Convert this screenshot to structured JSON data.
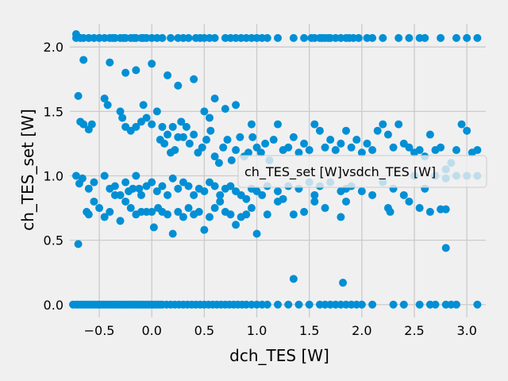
{
  "chart_data": {
    "type": "scatter",
    "title": "",
    "xlabel": "dch_TES [W]",
    "ylabel": "ch_TES_set [W]",
    "xlim": [
      -0.78,
      3.18
    ],
    "ylim": [
      -0.1,
      2.18
    ],
    "xticks": [
      -0.5,
      0.0,
      0.5,
      1.0,
      1.5,
      2.0,
      2.5,
      3.0
    ],
    "xtick_labels": [
      "−0.5",
      "0.0",
      "0.5",
      "1.0",
      "1.5",
      "2.0",
      "2.5",
      "3.0"
    ],
    "yticks": [
      0.0,
      0.5,
      1.0,
      1.5,
      2.0
    ],
    "ytick_labels": [
      "0.0",
      "0.5",
      "1.0",
      "1.5",
      "2.0"
    ],
    "grid": true,
    "style": "fivethirtyeight",
    "marker_color": "#008fd5",
    "background_color": "#f0f0f0",
    "grid_color": "#cbcbcb",
    "legend": {
      "placement": "right",
      "entries": [
        "ch_TES_set [W]vsdch_TES [W]"
      ]
    },
    "series": [
      {
        "name": "ch_TES_set [W]vsdch_TES [W]",
        "x": [
          -0.75,
          -0.72,
          -0.7,
          -0.68,
          -0.66,
          -0.64,
          -0.62,
          -0.6,
          -0.58,
          -0.56,
          -0.54,
          -0.52,
          -0.5,
          -0.48,
          -0.46,
          -0.44,
          -0.42,
          -0.4,
          -0.38,
          -0.36,
          -0.34,
          -0.32,
          -0.3,
          -0.28,
          -0.26,
          -0.24,
          -0.22,
          -0.2,
          -0.18,
          -0.16,
          -0.14,
          -0.12,
          -0.1,
          -0.08,
          -0.06,
          -0.04,
          -0.02,
          0.0,
          0.02,
          0.04,
          0.06,
          0.08,
          0.1,
          0.14,
          0.18,
          0.22,
          0.26,
          0.3,
          0.34,
          0.38,
          0.42,
          0.46,
          0.5,
          0.54,
          0.58,
          0.62,
          0.66,
          0.7,
          0.74,
          0.78,
          0.82,
          0.86,
          0.9,
          0.95,
          1.0,
          1.05,
          1.1,
          1.2,
          1.3,
          1.4,
          1.5,
          1.6,
          1.65,
          1.7,
          1.75,
          1.8,
          1.85,
          1.9,
          1.95,
          2.0,
          2.1,
          2.3,
          2.4,
          2.55,
          2.65,
          2.7,
          2.8,
          2.85,
          2.9,
          3.1,
          -0.72,
          -0.68,
          -0.65,
          -0.6,
          -0.55,
          -0.5,
          -0.45,
          -0.4,
          -0.37,
          -0.35,
          -0.3,
          -0.27,
          -0.25,
          -0.2,
          -0.17,
          -0.15,
          -0.1,
          -0.08,
          -0.05,
          0.0,
          0.05,
          0.1,
          0.18,
          0.25,
          0.3,
          0.35,
          0.42,
          0.46,
          0.5,
          0.55,
          0.6,
          0.7,
          0.75,
          0.8,
          0.85,
          0.9,
          0.95,
          1.0,
          1.05,
          1.1,
          1.2,
          1.35,
          1.45,
          1.52,
          1.55,
          1.6,
          1.62,
          1.65,
          1.68,
          1.7,
          1.75,
          1.8,
          1.85,
          1.88,
          1.92,
          1.97,
          2.05,
          2.1,
          2.2,
          2.35,
          2.45,
          2.55,
          2.6,
          2.75,
          2.9,
          3.0,
          3.1,
          -0.7,
          -0.68,
          -0.65,
          -0.6,
          -0.57,
          -0.45,
          -0.42,
          -0.3,
          -0.28,
          -0.25,
          -0.2,
          -0.15,
          -0.1,
          -0.08,
          -0.05,
          0.0,
          0.05,
          0.08,
          0.1,
          0.12,
          0.15,
          0.18,
          0.2,
          0.22,
          0.25,
          0.28,
          0.3,
          0.33,
          0.36,
          0.4,
          0.44,
          0.48,
          0.52,
          0.56,
          0.6,
          0.64,
          0.68,
          0.72,
          0.76,
          0.8,
          0.84,
          0.88,
          0.92,
          0.96,
          1.0,
          1.04,
          1.08,
          1.12,
          1.16,
          1.2,
          1.25,
          1.3,
          1.35,
          1.4,
          1.45,
          1.5,
          1.55,
          1.6,
          1.65,
          1.7,
          1.75,
          1.8,
          1.85,
          1.9,
          1.95,
          2.0,
          2.05,
          2.1,
          2.15,
          2.2,
          2.25,
          2.3,
          2.35,
          2.4,
          2.45,
          2.5,
          2.55,
          2.6,
          2.65,
          2.7,
          2.75,
          2.8,
          2.85,
          2.9,
          2.95,
          3.0,
          3.05,
          3.1,
          -0.72,
          -0.69,
          -0.66,
          -0.6,
          -0.55,
          -0.45,
          -0.4,
          -0.35,
          -0.3,
          -0.25,
          -0.22,
          -0.18,
          -0.15,
          -0.12,
          -0.1,
          -0.05,
          0.0,
          0.05,
          0.1,
          0.15,
          0.2,
          0.25,
          0.3,
          0.35,
          0.4,
          0.45,
          0.5,
          0.55,
          0.6,
          0.65,
          0.7,
          0.75,
          0.8,
          0.85,
          0.9,
          0.95,
          1.0,
          1.05,
          1.1,
          1.2,
          1.25,
          1.3,
          1.4,
          1.5,
          1.55,
          1.6,
          1.7,
          1.8,
          1.85,
          1.9,
          2.0,
          2.1,
          2.2,
          2.3,
          2.4,
          2.5,
          2.6,
          2.7,
          2.8,
          2.9,
          3.0,
          3.1,
          -0.7,
          -0.62,
          -0.6,
          -0.55,
          -0.5,
          -0.45,
          -0.4,
          -0.35,
          -0.3,
          -0.25,
          -0.2,
          -0.15,
          -0.1,
          -0.05,
          0.0,
          0.02,
          0.06,
          0.1,
          0.15,
          0.2,
          0.25,
          0.3,
          0.35,
          0.4,
          0.45,
          0.5,
          0.55,
          0.6,
          0.65,
          0.7,
          0.75,
          0.8,
          0.85,
          0.9,
          0.95,
          1.0,
          1.1,
          1.2,
          1.35,
          1.45,
          1.55,
          1.65,
          1.8,
          1.85,
          2.25,
          2.27,
          2.45,
          2.55,
          2.65,
          2.75,
          2.8,
          -0.72,
          -0.65,
          -0.4,
          -0.25,
          -0.15,
          0.0,
          0.15,
          0.25,
          0.4,
          0.5,
          0.55,
          0.6,
          0.7,
          0.8,
          0.95,
          1.35,
          1.82,
          2.8
        ],
        "y": [
          0.0,
          0.0,
          0.0,
          0.0,
          0.0,
          0.0,
          0.0,
          0.0,
          0.0,
          0.0,
          0.0,
          0.0,
          0.0,
          0.0,
          0.0,
          0.0,
          0.0,
          0.0,
          0.0,
          0.0,
          0.0,
          0.0,
          0.0,
          0.0,
          0.0,
          0.0,
          0.0,
          0.0,
          0.0,
          0.0,
          0.0,
          0.0,
          0.0,
          0.0,
          0.0,
          0.0,
          0.0,
          0.0,
          0.0,
          0.0,
          0.0,
          0.0,
          0.0,
          0.0,
          0.0,
          0.0,
          0.0,
          0.0,
          0.0,
          0.0,
          0.0,
          0.0,
          0.0,
          0.0,
          0.0,
          0.0,
          0.0,
          0.0,
          0.0,
          0.0,
          0.0,
          0.0,
          0.0,
          0.0,
          0.0,
          0.0,
          0.0,
          0.0,
          0.0,
          0.0,
          0.0,
          0.0,
          0.0,
          0.0,
          0.0,
          0.0,
          0.0,
          0.0,
          0.0,
          0.0,
          0.0,
          0.0,
          0.0,
          0.0,
          0.0,
          0.0,
          0.0,
          0.0,
          0.0,
          0.0,
          2.07,
          2.07,
          2.07,
          2.07,
          2.07,
          2.07,
          2.07,
          2.07,
          2.07,
          2.07,
          2.07,
          2.07,
          2.07,
          2.07,
          2.07,
          2.07,
          2.07,
          2.07,
          2.07,
          2.07,
          2.07,
          2.07,
          2.07,
          2.07,
          2.07,
          2.07,
          2.07,
          2.07,
          2.07,
          2.07,
          2.07,
          2.07,
          2.07,
          2.07,
          2.07,
          2.07,
          2.07,
          2.07,
          2.07,
          2.07,
          2.07,
          2.07,
          2.07,
          2.07,
          2.07,
          2.07,
          2.07,
          2.07,
          2.07,
          2.07,
          2.07,
          2.07,
          2.07,
          2.07,
          2.07,
          2.07,
          2.07,
          2.07,
          2.07,
          2.07,
          2.07,
          2.07,
          2.07,
          2.07,
          2.07,
          2.07,
          2.07,
          1.62,
          1.42,
          1.4,
          1.36,
          1.4,
          1.6,
          1.55,
          1.5,
          1.45,
          1.38,
          1.35,
          1.38,
          1.42,
          1.55,
          1.45,
          1.4,
          1.5,
          1.28,
          1.38,
          1.25,
          1.32,
          1.18,
          1.38,
          1.2,
          1.3,
          1.42,
          1.3,
          1.38,
          1.25,
          1.32,
          1.18,
          1.22,
          1.28,
          1.35,
          1.15,
          1.1,
          1.22,
          1.28,
          1.12,
          1.2,
          1.3,
          1.15,
          1.18,
          1.3,
          1.22,
          1.18,
          1.25,
          1.12,
          1.28,
          1.4,
          1.2,
          1.22,
          1.3,
          1.18,
          1.25,
          1.2,
          1.4,
          1.35,
          1.22,
          1.28,
          1.2,
          1.25,
          1.35,
          1.22,
          1.28,
          1.18,
          1.25,
          1.2,
          1.35,
          1.4,
          1.32,
          1.22,
          1.4,
          1.25,
          1.22,
          1.18,
          1.2,
          1.15,
          1.32,
          1.2,
          1.22,
          1.05,
          1.1,
          1.2,
          1.4,
          1.35,
          1.18,
          1.2,
          1.0,
          0.94,
          0.98,
          0.9,
          0.95,
          1.0,
          0.9,
          0.92,
          0.85,
          0.95,
          0.88,
          0.9,
          1.0,
          0.9,
          0.85,
          0.92,
          0.95,
          0.88,
          0.92,
          0.85,
          0.98,
          0.9,
          0.95,
          0.92,
          0.85,
          0.9,
          0.88,
          0.95,
          0.92,
          0.85,
          0.9,
          0.92,
          0.88,
          0.85,
          0.82,
          0.9,
          0.88,
          0.85,
          0.92,
          0.88,
          0.82,
          0.92,
          0.9,
          0.95,
          0.85,
          0.92,
          0.95,
          0.88,
          0.9,
          0.92,
          0.88,
          0.85,
          0.95,
          0.9,
          0.85,
          1.0,
          0.9,
          1.0,
          0.98,
          1.0,
          1.0,
          1.0,
          0.47,
          0.72,
          0.7,
          0.8,
          0.75,
          0.68,
          0.72,
          0.85,
          0.65,
          0.8,
          0.75,
          0.7,
          0.72,
          0.72,
          0.72,
          0.6,
          0.75,
          0.72,
          0.7,
          0.55,
          0.72,
          0.68,
          0.75,
          0.7,
          0.72,
          0.58,
          0.68,
          0.75,
          0.8,
          0.72,
          0.7,
          0.62,
          0.68,
          0.7,
          0.75,
          0.55,
          0.7,
          0.8,
          0.7,
          0.72,
          0.8,
          0.75,
          0.68,
          0.8,
          0.75,
          0.72,
          0.8,
          0.75,
          0.72,
          0.74,
          0.74,
          2.1,
          1.9,
          1.88,
          1.8,
          1.82,
          1.87,
          1.78,
          1.7,
          1.75,
          1.5,
          1.45,
          1.6,
          1.52,
          1.55,
          1.4,
          0.2,
          0.17,
          0.44
        ]
      }
    ]
  }
}
